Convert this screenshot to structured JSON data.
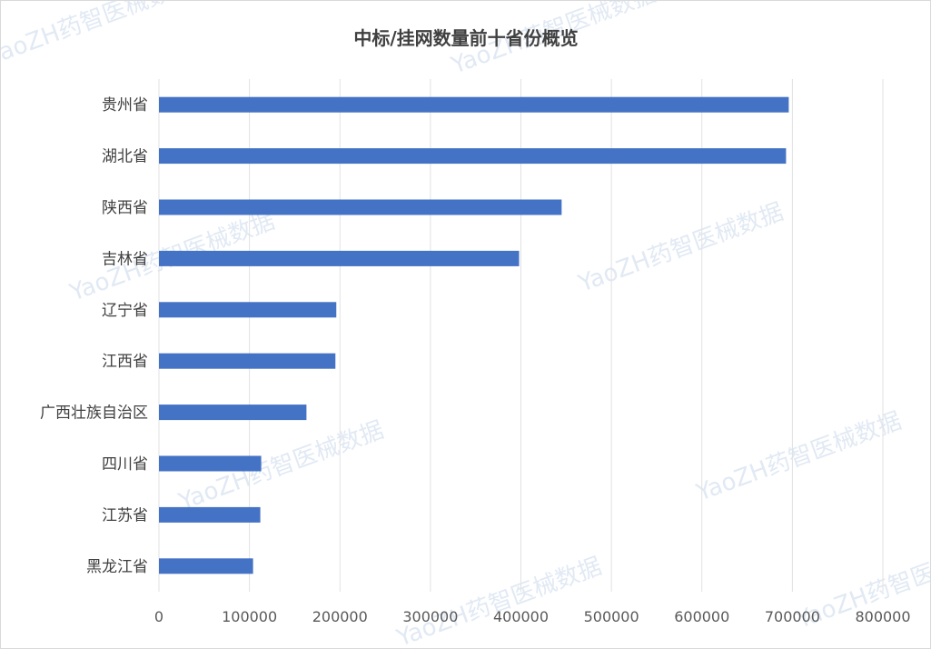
{
  "chart_data": {
    "type": "bar",
    "orientation": "horizontal",
    "title": "中标/挂网数量前十省份概览",
    "categories": [
      "贵州省",
      "湖北省",
      "陕西省",
      "吉林省",
      "辽宁省",
      "江西省",
      "广西壮族自治区",
      "四川省",
      "江苏省",
      "黑龙江省"
    ],
    "values": [
      696000,
      693000,
      445000,
      398000,
      196000,
      195000,
      163000,
      113000,
      112000,
      104000
    ],
    "xlim": [
      0,
      800000
    ],
    "xticks": [
      "0",
      "100000",
      "200000",
      "300000",
      "400000",
      "500000",
      "600000",
      "700000",
      "800000"
    ],
    "xlabel": "",
    "ylabel": "",
    "grid": "vertical",
    "legend": "none",
    "bar_color": "#4472c4",
    "grid_color": "#e1e1e1"
  },
  "watermark": {
    "text": "YaoZH药智医械数据",
    "color": "#c9d8ec"
  }
}
